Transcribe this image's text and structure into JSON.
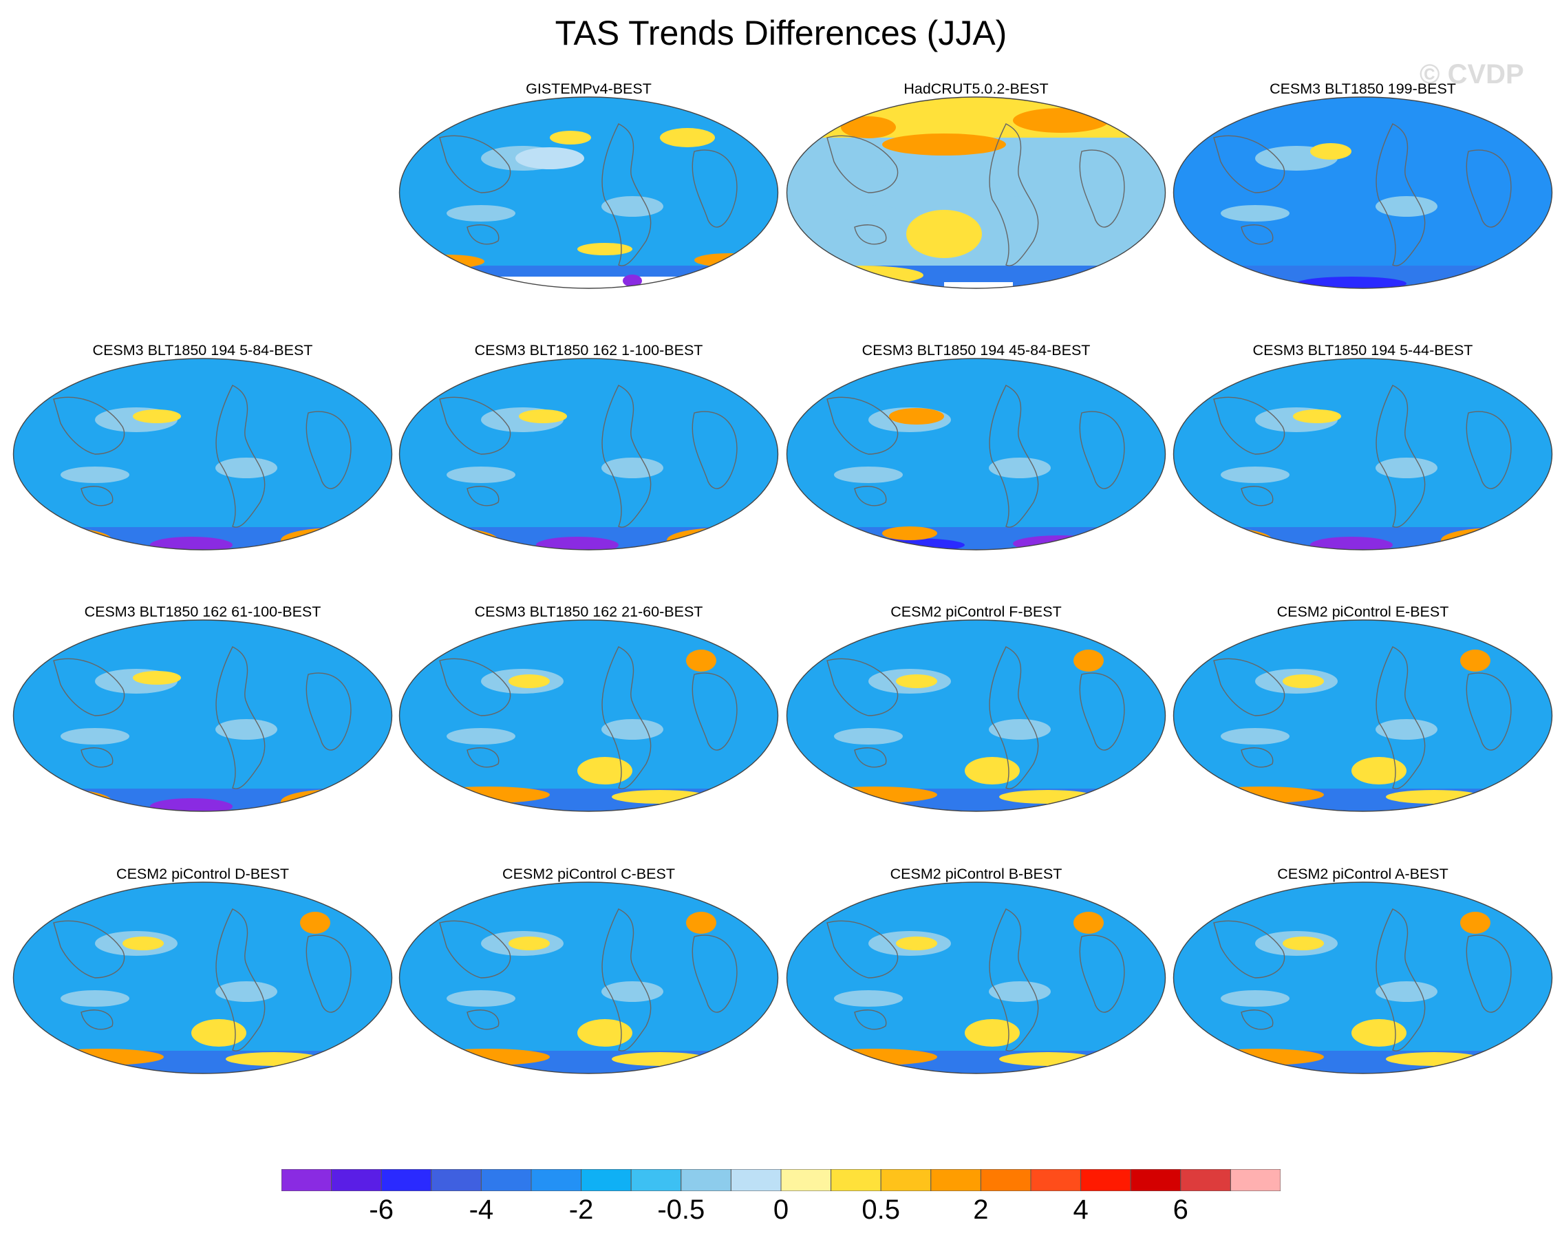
{
  "figure": {
    "title": "TAS Trends Differences (JJA)",
    "watermark": "© CVDP"
  },
  "panels": [
    {
      "title": "GISTEMPv4-BEST",
      "style": "gistemp"
    },
    {
      "title": "HadCRUT5.0.2-BEST",
      "style": "hadcrut"
    },
    {
      "title": "CESM3 BLT1850 199-BEST",
      "style": "cold"
    },
    {
      "title": "CESM3 BLT1850 194 5-84-BEST",
      "style": "model_hot"
    },
    {
      "title": "CESM3 BLT1850 162 1-100-BEST",
      "style": "model_hot"
    },
    {
      "title": "CESM3 BLT1850 194 45-84-BEST",
      "style": "model_cold"
    },
    {
      "title": "CESM3 BLT1850 194 5-44-BEST",
      "style": "model_hot"
    },
    {
      "title": "CESM3 BLT1850 162 61-100-BEST",
      "style": "model_hot"
    },
    {
      "title": "CESM3 BLT1850 162 21-60-BEST",
      "style": "model"
    },
    {
      "title": "CESM2 piControl F-BEST",
      "style": "model"
    },
    {
      "title": "CESM2 piControl E-BEST",
      "style": "model"
    },
    {
      "title": "CESM2 piControl D-BEST",
      "style": "model"
    },
    {
      "title": "CESM2 piControl C-BEST",
      "style": "model"
    },
    {
      "title": "CESM2 piControl B-BEST",
      "style": "model"
    },
    {
      "title": "CESM2 piControl A-BEST",
      "style": "model"
    }
  ],
  "colorbar": {
    "colors": [
      "#8a2be2",
      "#5a1ee6",
      "#2a2aff",
      "#3f60e0",
      "#2f79ec",
      "#2391f5",
      "#0fb0f5",
      "#3dc0f3",
      "#8dccec",
      "#bde0f6",
      "#fff59d",
      "#ffe13a",
      "#ffc21a",
      "#ff9d00",
      "#ff7a00",
      "#ff4d1a",
      "#ff1a00",
      "#d40000",
      "#dd3c3c",
      "#ffb0b0"
    ],
    "labels": [
      "-6",
      "-4",
      "-2",
      "-0.5",
      "0",
      "0.5",
      "2",
      "4",
      "6"
    ],
    "label_boundaries": [
      2,
      4,
      6,
      8,
      10,
      12,
      14,
      16,
      18
    ]
  }
}
